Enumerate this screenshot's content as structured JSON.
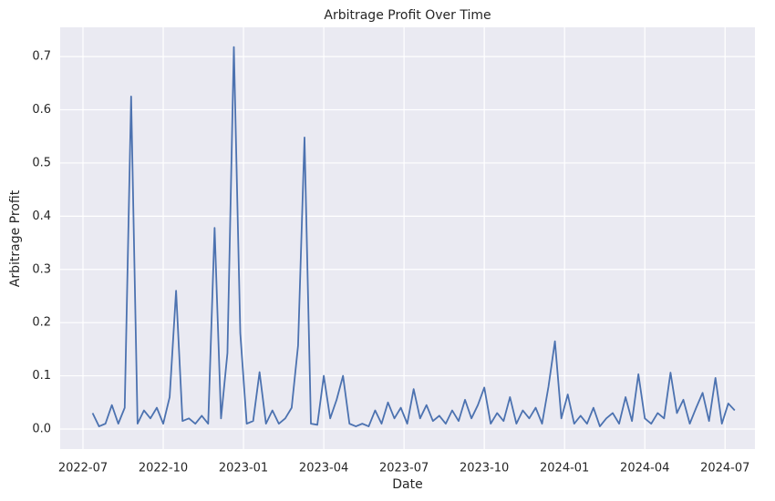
{
  "chart_data": {
    "type": "line",
    "title": "Arbitrage Profit Over Time",
    "x_label": "Date",
    "y_label": "Arbitrage Profit",
    "x": [
      2022.53,
      2022.55,
      2022.57,
      2022.59,
      2022.61,
      2022.63,
      2022.65,
      2022.67,
      2022.69,
      2022.71,
      2022.73,
      2022.75,
      2022.77,
      2022.79,
      2022.81,
      2022.83,
      2022.85,
      2022.87,
      2022.89,
      2022.91,
      2022.93,
      2022.95,
      2022.97,
      2022.99,
      2023.01,
      2023.03,
      2023.05,
      2023.07,
      2023.09,
      2023.11,
      2023.13,
      2023.15,
      2023.17,
      2023.19,
      2023.21,
      2023.23,
      2023.25,
      2023.27,
      2023.29,
      2023.31,
      2023.33,
      2023.35,
      2023.37,
      2023.39,
      2023.41,
      2023.43,
      2023.45,
      2023.47,
      2023.49,
      2023.51,
      2023.53,
      2023.55,
      2023.57,
      2023.59,
      2023.61,
      2023.63,
      2023.65,
      2023.67,
      2023.69,
      2023.71,
      2023.73,
      2023.75,
      2023.77,
      2023.79,
      2023.81,
      2023.83,
      2023.85,
      2023.87,
      2023.89,
      2023.91,
      2023.93,
      2023.95,
      2023.97,
      2023.99,
      2024.01,
      2024.03,
      2024.05,
      2024.07,
      2024.09,
      2024.11,
      2024.13,
      2024.15,
      2024.17,
      2024.19,
      2024.21,
      2024.23,
      2024.25,
      2024.27,
      2024.29,
      2024.31,
      2024.33,
      2024.35,
      2024.37,
      2024.39,
      2024.41,
      2024.43,
      2024.45,
      2024.47,
      2024.49,
      2024.51,
      2024.53
    ],
    "series": [
      {
        "name": "Arbitrage Profit",
        "color": "#4c72b0",
        "values": [
          0.03,
          0.005,
          0.01,
          0.045,
          0.01,
          0.04,
          0.625,
          0.01,
          0.035,
          0.02,
          0.04,
          0.01,
          0.06,
          0.26,
          0.015,
          0.02,
          0.01,
          0.025,
          0.01,
          0.378,
          0.02,
          0.143,
          0.718,
          0.18,
          0.01,
          0.015,
          0.107,
          0.01,
          0.035,
          0.01,
          0.02,
          0.04,
          0.157,
          0.548,
          0.01,
          0.008,
          0.1,
          0.02,
          0.055,
          0.1,
          0.01,
          0.005,
          0.01,
          0.005,
          0.035,
          0.01,
          0.05,
          0.02,
          0.04,
          0.01,
          0.075,
          0.02,
          0.045,
          0.015,
          0.025,
          0.01,
          0.035,
          0.015,
          0.055,
          0.02,
          0.045,
          0.078,
          0.01,
          0.03,
          0.015,
          0.06,
          0.01,
          0.035,
          0.02,
          0.04,
          0.01,
          0.08,
          0.165,
          0.02,
          0.065,
          0.01,
          0.025,
          0.01,
          0.04,
          0.005,
          0.02,
          0.03,
          0.01,
          0.06,
          0.015,
          0.103,
          0.02,
          0.01,
          0.03,
          0.02,
          0.106,
          0.03,
          0.055,
          0.01,
          0.04,
          0.068,
          0.015,
          0.096,
          0.01,
          0.048,
          0.035
        ]
      }
    ],
    "xlim": [
      2022.429,
      2024.593
    ],
    "xticks": [
      {
        "value": 2022.5,
        "label": "2022-07"
      },
      {
        "value": 2022.75,
        "label": "2022-10"
      },
      {
        "value": 2023,
        "label": "2023-01"
      },
      {
        "value": 2023.25,
        "label": "2023-04"
      },
      {
        "value": 2023.5,
        "label": "2023-07"
      },
      {
        "value": 2023.75,
        "label": "2023-10"
      },
      {
        "value": 2024,
        "label": "2024-01"
      },
      {
        "value": 2024.25,
        "label": "2024-04"
      },
      {
        "value": 2024.5,
        "label": "2024-07"
      }
    ],
    "ylim": [
      -0.0377,
      0.755
    ],
    "yticks": [
      {
        "value": 0,
        "label": "0.0"
      },
      {
        "value": 0.1,
        "label": "0.1"
      },
      {
        "value": 0.2,
        "label": "0.2"
      },
      {
        "value": 0.3,
        "label": "0.3"
      },
      {
        "value": 0.4,
        "label": "0.4"
      },
      {
        "value": 0.5,
        "label": "0.5"
      },
      {
        "value": 0.6,
        "label": "0.6"
      },
      {
        "value": 0.7,
        "label": "0.7"
      }
    ],
    "grid": true
  }
}
